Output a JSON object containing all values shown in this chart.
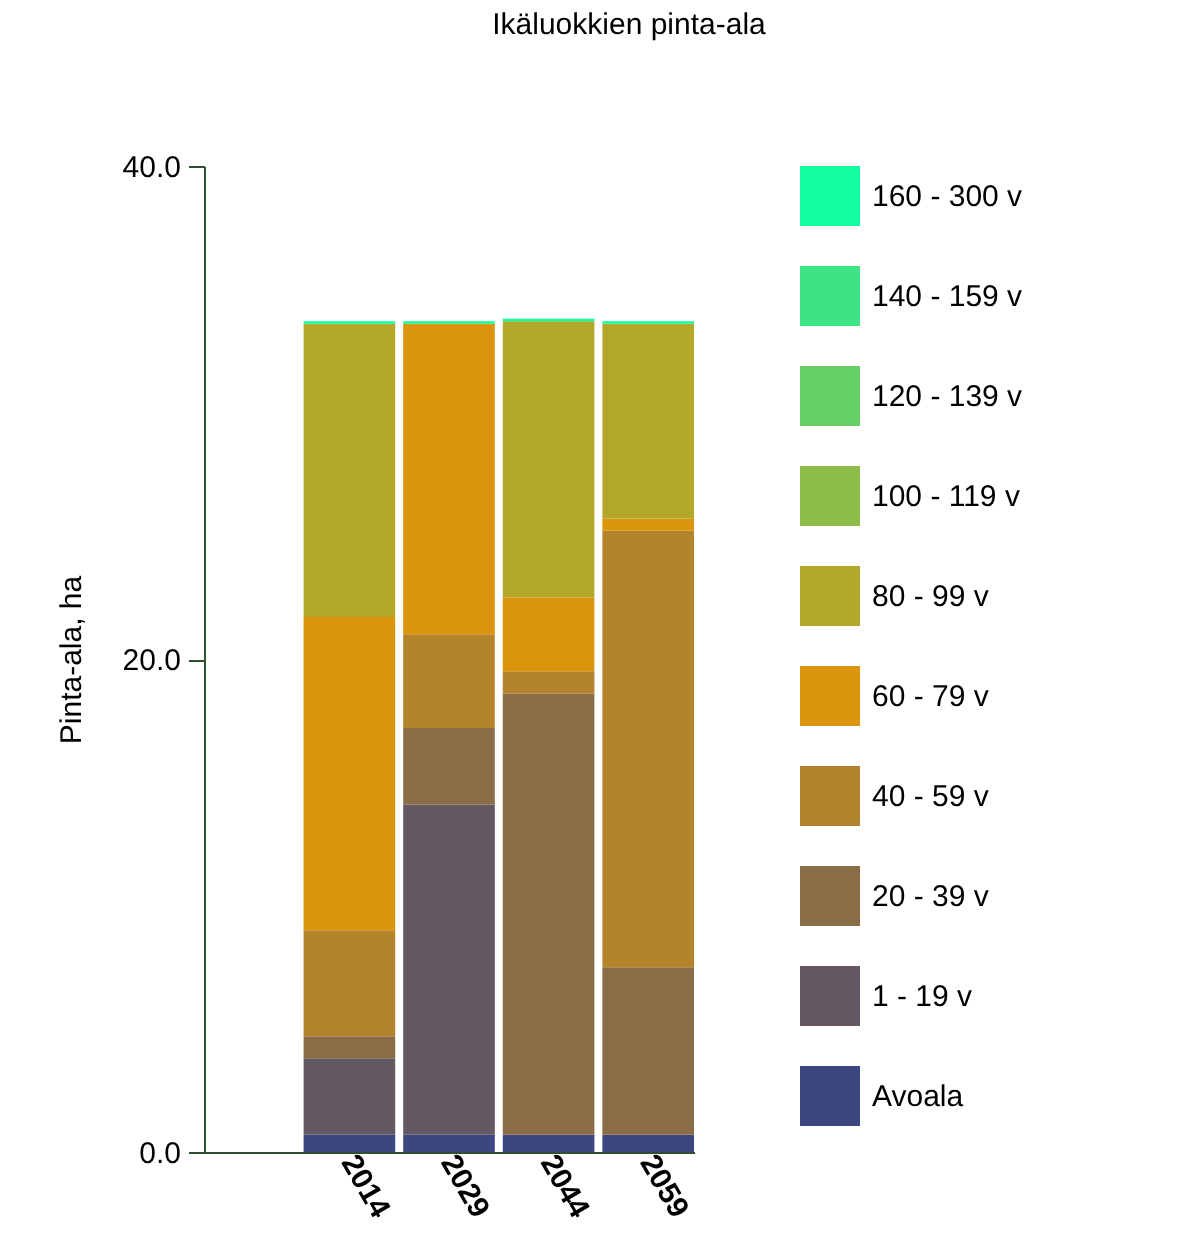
{
  "chart_data": {
    "type": "bar",
    "title": "Ikäluokkien pinta-ala",
    "ylabel": "Pinta-ala, ha",
    "categories": [
      "2014",
      "2029",
      "2044",
      "2059"
    ],
    "stacked": true,
    "ylim": [
      0,
      40
    ],
    "yticks": [
      {
        "value": 0,
        "label": "0.0"
      },
      {
        "value": 20,
        "label": "20.0"
      },
      {
        "value": 40,
        "label": "40.0"
      }
    ],
    "grid": false,
    "legend": "right",
    "series": [
      {
        "name": "Avoala",
        "color": "#3c4680",
        "values": [
          0.7,
          0.7,
          0.7,
          0.7
        ]
      },
      {
        "name": "1 - 19 v",
        "color": "#645862",
        "values": [
          3.1,
          13.4,
          0,
          0
        ]
      },
      {
        "name": "20 - 39 v",
        "color": "#8a6d46",
        "values": [
          0.9,
          3.1,
          17.9,
          6.8
        ]
      },
      {
        "name": "40 - 59 v",
        "color": "#b4842c",
        "values": [
          4.3,
          3.8,
          0.9,
          17.7
        ]
      },
      {
        "name": "60 - 79 v",
        "color": "#da950c",
        "values": [
          12.7,
          12.6,
          3,
          0.5
        ]
      },
      {
        "name": "80 - 99 v",
        "color": "#b4a82a",
        "values": [
          11.9,
          0,
          11.2,
          7.9
        ]
      },
      {
        "name": "100 - 119 v",
        "color": "#8dbc46",
        "values": [
          0,
          0,
          0,
          0
        ]
      },
      {
        "name": "120 - 139 v",
        "color": "#66d066",
        "values": [
          0,
          0,
          0,
          0
        ]
      },
      {
        "name": "140 - 159 v",
        "color": "#3ce484",
        "values": [
          0,
          0,
          0,
          0
        ]
      },
      {
        "name": "160 - 300 v",
        "color": "#12fca0",
        "values": [
          0.1,
          0.1,
          0.1,
          0.1
        ]
      }
    ]
  }
}
